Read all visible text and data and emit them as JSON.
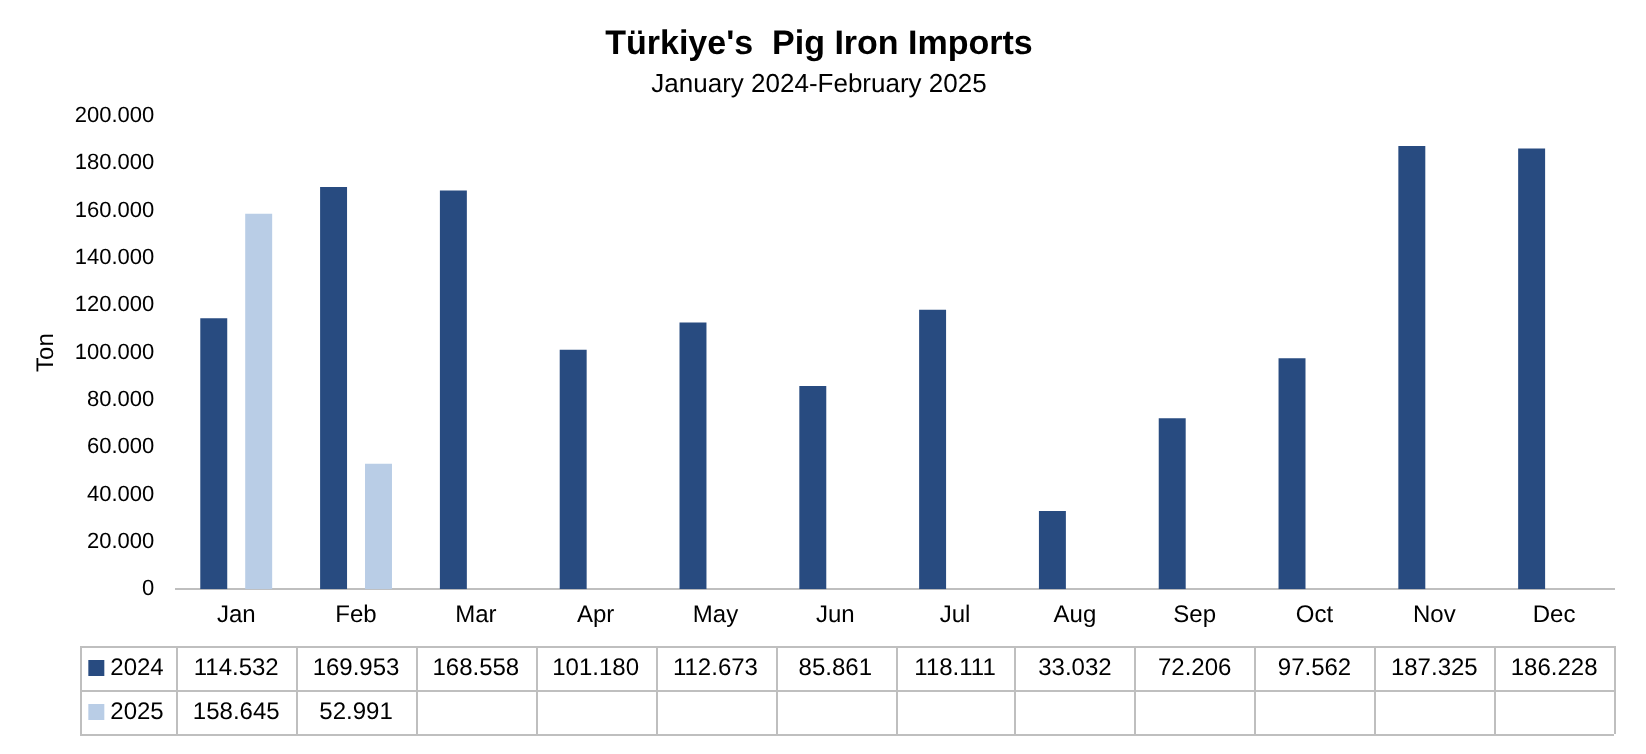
{
  "chart_data": {
    "type": "bar",
    "title": "Türkiye's  Pig Iron Imports",
    "subtitle": "January 2024-February 2025",
    "ylabel": "Ton",
    "categories": [
      "Jan",
      "Feb",
      "Mar",
      "Apr",
      "May",
      "Jun",
      "Jul",
      "Aug",
      "Sep",
      "Oct",
      "Nov",
      "Dec"
    ],
    "series": [
      {
        "name": "2024",
        "color": "#284b80",
        "values": [
          114532,
          169953,
          168558,
          101180,
          112673,
          85861,
          118111,
          33032,
          72206,
          97562,
          187325,
          186228
        ],
        "value_labels": [
          "114.532",
          "169.953",
          "168.558",
          "101.180",
          "112.673",
          "85.861",
          "118.111",
          "33.032",
          "72.206",
          "97.562",
          "187.325",
          "186.228"
        ]
      },
      {
        "name": "2025",
        "color": "#b9cde6",
        "values": [
          158645,
          52991,
          null,
          null,
          null,
          null,
          null,
          null,
          null,
          null,
          null,
          null
        ],
        "value_labels": [
          "158.645",
          "52.991",
          null,
          null,
          null,
          null,
          null,
          null,
          null,
          null,
          null,
          null
        ]
      }
    ],
    "ylim": [
      0,
      200000
    ],
    "yticks": [
      {
        "value": 0,
        "label": "0"
      },
      {
        "value": 20000,
        "label": "20.000"
      },
      {
        "value": 40000,
        "label": "40.000"
      },
      {
        "value": 60000,
        "label": "60.000"
      },
      {
        "value": 80000,
        "label": "80.000"
      },
      {
        "value": 100000,
        "label": "100.000"
      },
      {
        "value": 120000,
        "label": "120.000"
      },
      {
        "value": 140000,
        "label": "140.000"
      },
      {
        "value": 160000,
        "label": "160.000"
      },
      {
        "value": 180000,
        "label": "180.000"
      },
      {
        "value": 200000,
        "label": "200.000"
      }
    ],
    "legend": "bottom"
  }
}
